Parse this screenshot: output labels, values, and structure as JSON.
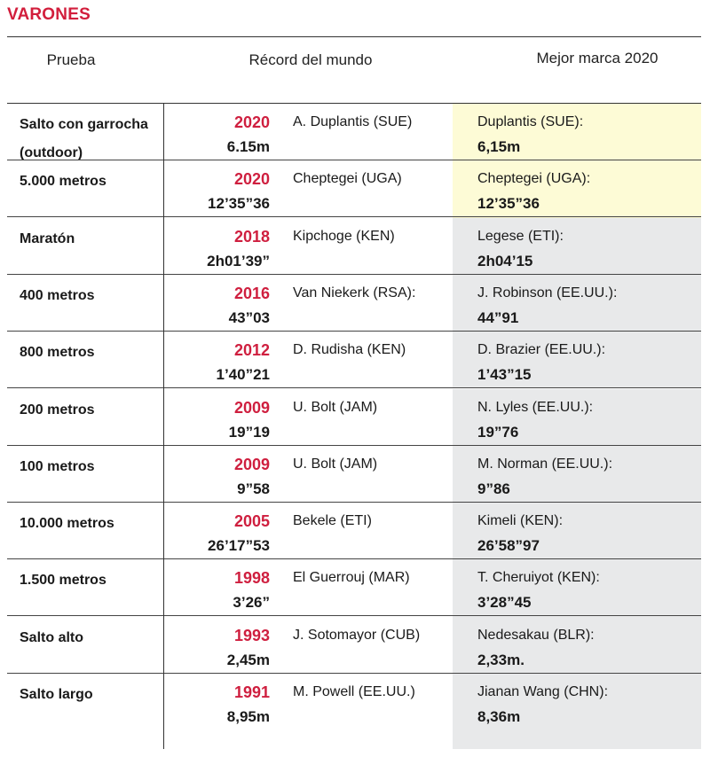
{
  "section_title": "VARONES",
  "headers": {
    "event": "Prueba",
    "world_record": "Récord del mundo",
    "best_2020": "Mejor marca 2020"
  },
  "rows": [
    {
      "event": "Salto con garrocha (outdoor)",
      "year": "2020",
      "record": "6.15m",
      "holder": "A. Duplantis (SUE)",
      "best_athlete": "Duplantis (SUE):",
      "best_mark": "6,15m",
      "highlight": "yellow"
    },
    {
      "event": "5.000 metros",
      "year": "2020",
      "record": "12’35”36",
      "holder": "Cheptegei (UGA)",
      "best_athlete": "Cheptegei (UGA):",
      "best_mark": "12’35”36",
      "highlight": "yellow"
    },
    {
      "event": "Maratón",
      "year": "2018",
      "record": "2h01’39”",
      "holder": "Kipchoge (KEN)",
      "best_athlete": "Legese (ETI):",
      "best_mark": "2h04’15",
      "highlight": "grey"
    },
    {
      "event": "400 metros",
      "year": "2016",
      "record": "43”03",
      "holder": "Van Niekerk (RSA):",
      "best_athlete": "J. Robinson (EE.UU.):",
      "best_mark": " 44”91",
      "highlight": "grey"
    },
    {
      "event": "800 metros",
      "year": "2012",
      "record": "1’40”21",
      "holder": "D. Rudisha  (KEN)",
      "best_athlete": "D. Brazier (EE.UU.):",
      "best_mark": "1’43”15",
      "highlight": "grey"
    },
    {
      "event": "200 metros",
      "year": "2009",
      "record": "19”19",
      "holder": "U. Bolt (JAM)",
      "best_athlete": "N. Lyles (EE.UU.):",
      "best_mark": "19”76",
      "highlight": "grey"
    },
    {
      "event": "100 metros",
      "year": "2009",
      "record": "9”58",
      "holder": "U. Bolt (JAM)",
      "best_athlete": "M. Norman (EE.UU.):",
      "best_mark": "9”86",
      "highlight": "grey"
    },
    {
      "event": "10.000 metros",
      "year": "2005",
      "record": "26’17”53",
      "holder": "Bekele (ETI)",
      "best_athlete": "Kimeli (KEN):",
      "best_mark": "26’58”97",
      "highlight": "grey"
    },
    {
      "event": "1.500 metros",
      "year": "1998",
      "record": "3’26”",
      "holder": "El Guerrouj (MAR)",
      "best_athlete": "T. Cheruiyot (KEN):",
      "best_mark": "3’28”45",
      "highlight": "grey"
    },
    {
      "event": "Salto alto",
      "year": "1993",
      "record": "2,45m",
      "holder": "J. Sotomayor (CUB)",
      "best_athlete": "Nedesakau (BLR):",
      "best_mark": "2,33m.",
      "highlight": "grey"
    },
    {
      "event": "Salto largo",
      "year": "1991",
      "record": "8,95m",
      "holder": "M. Powell (EE.UU.)",
      "best_athlete": "Jianan Wang (CHN):",
      "best_mark": "8,36m",
      "highlight": "grey"
    }
  ],
  "colors": {
    "accent": "#cf1f3f",
    "highlight_yellow": "#fdfbd6",
    "highlight_grey": "#e8e9ea"
  }
}
